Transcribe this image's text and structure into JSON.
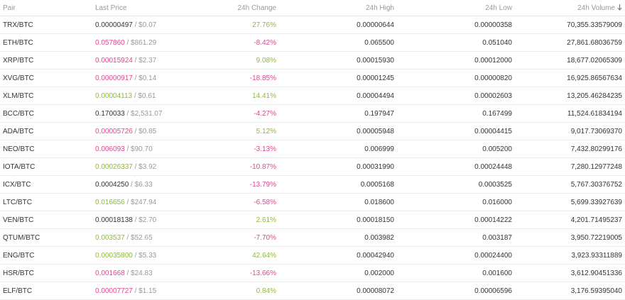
{
  "columns": {
    "pair": "Pair",
    "last_price": "Last Price",
    "change": "24h Change",
    "high": "24h High",
    "low": "24h Low",
    "volume": "24h Volume",
    "volume_sort_icon": "arrow-down-icon"
  },
  "colors": {
    "up": "#8fb93a",
    "down": "#e04692",
    "neutral": "#333333",
    "muted": "#999999"
  },
  "rows": [
    {
      "pair": "TRX/BTC",
      "price": "0.00000497",
      "price_dir": "neutral",
      "usd": " / $0.07",
      "change": "27.76%",
      "change_dir": "up",
      "high": "0.00000644",
      "low": "0.00000358",
      "volume": "70,355.33579009"
    },
    {
      "pair": "ETH/BTC",
      "price": "0.057860",
      "price_dir": "down",
      "usd": " / $861.29",
      "change": "-8.42%",
      "change_dir": "down",
      "high": "0.065500",
      "low": "0.051040",
      "volume": "27,861.68036759"
    },
    {
      "pair": "XRP/BTC",
      "price": "0.00015924",
      "price_dir": "down",
      "usd": " / $2.37",
      "change": "9.08%",
      "change_dir": "up",
      "high": "0.00015930",
      "low": "0.00012000",
      "volume": "18,677.02065309"
    },
    {
      "pair": "XVG/BTC",
      "price": "0.00000917",
      "price_dir": "down",
      "usd": " / $0.14",
      "change": "-18.85%",
      "change_dir": "down",
      "high": "0.00001245",
      "low": "0.00000820",
      "volume": "16,925.86567634"
    },
    {
      "pair": "XLM/BTC",
      "price": "0.00004113",
      "price_dir": "up",
      "usd": " / $0.61",
      "change": "14.41%",
      "change_dir": "up",
      "high": "0.00004494",
      "low": "0.00002603",
      "volume": "13,205.46284235"
    },
    {
      "pair": "BCC/BTC",
      "price": "0.170033",
      "price_dir": "neutral",
      "usd": " / $2,531.07",
      "change": "-4.27%",
      "change_dir": "down",
      "high": "0.197947",
      "low": "0.167499",
      "volume": "11,524.61834194"
    },
    {
      "pair": "ADA/BTC",
      "price": "0.00005726",
      "price_dir": "down",
      "usd": " / $0.85",
      "change": "5.12%",
      "change_dir": "up",
      "high": "0.00005948",
      "low": "0.00004415",
      "volume": "9,017.73069370"
    },
    {
      "pair": "NEO/BTC",
      "price": "0.006093",
      "price_dir": "down",
      "usd": " / $90.70",
      "change": "-3.13%",
      "change_dir": "down",
      "high": "0.006999",
      "low": "0.005200",
      "volume": "7,432.80299176"
    },
    {
      "pair": "IOTA/BTC",
      "price": "0.00026337",
      "price_dir": "up",
      "usd": " / $3.92",
      "change": "-10.87%",
      "change_dir": "down",
      "high": "0.00031990",
      "low": "0.00024448",
      "volume": "7,280.12977248"
    },
    {
      "pair": "ICX/BTC",
      "price": "0.0004250",
      "price_dir": "neutral",
      "usd": " / $6.33",
      "change": "-13.79%",
      "change_dir": "down",
      "high": "0.0005168",
      "low": "0.0003525",
      "volume": "5,767.30376752"
    },
    {
      "pair": "LTC/BTC",
      "price": "0.016656",
      "price_dir": "up",
      "usd": " / $247.94",
      "change": "-6.58%",
      "change_dir": "down",
      "high": "0.018600",
      "low": "0.016000",
      "volume": "5,699.33927639"
    },
    {
      "pair": "VEN/BTC",
      "price": "0.00018138",
      "price_dir": "neutral",
      "usd": " / $2.70",
      "change": "2.61%",
      "change_dir": "up",
      "high": "0.00018150",
      "low": "0.00014222",
      "volume": "4,201.71495237"
    },
    {
      "pair": "QTUM/BTC",
      "price": "0.003537",
      "price_dir": "up",
      "usd": " / $52.65",
      "change": "-7.70%",
      "change_dir": "down",
      "high": "0.003982",
      "low": "0.003187",
      "volume": "3,950.72219005"
    },
    {
      "pair": "ENG/BTC",
      "price": "0.00035800",
      "price_dir": "up",
      "usd": " / $5.33",
      "change": "42.64%",
      "change_dir": "up",
      "high": "0.00042940",
      "low": "0.00024400",
      "volume": "3,923.93311889"
    },
    {
      "pair": "HSR/BTC",
      "price": "0.001668",
      "price_dir": "down",
      "usd": " / $24.83",
      "change": "-13.66%",
      "change_dir": "down",
      "high": "0.002000",
      "low": "0.001600",
      "volume": "3,612.90451336"
    },
    {
      "pair": "ELF/BTC",
      "price": "0.00007727",
      "price_dir": "down",
      "usd": " / $1.15",
      "change": "0.84%",
      "change_dir": "up",
      "high": "0.00008072",
      "low": "0.00006596",
      "volume": "3,176.59395040"
    }
  ]
}
